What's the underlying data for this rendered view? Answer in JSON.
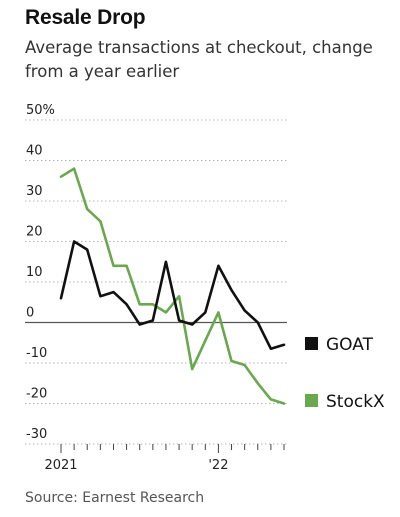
{
  "header": {
    "title": "Resale Drop",
    "subtitle": "Average transactions at checkout, change from a year earlier"
  },
  "footer": {
    "source": "Source: Earnest Research"
  },
  "chart_data": {
    "type": "line",
    "title": "Resale Drop",
    "subtitle": "Average transactions at checkout, change from a year earlier",
    "xlabel": "",
    "ylabel": "",
    "x_tick_labels": [
      "2021",
      "'22"
    ],
    "y_ticks": [
      {
        "value": 50,
        "label": "50%"
      },
      {
        "value": 40,
        "label": "40"
      },
      {
        "value": 30,
        "label": "30"
      },
      {
        "value": 20,
        "label": "20"
      },
      {
        "value": 10,
        "label": "10"
      },
      {
        "value": 0,
        "label": "0"
      },
      {
        "value": -10,
        "label": "-10"
      },
      {
        "value": -20,
        "label": "-20"
      },
      {
        "value": -30,
        "label": "-30"
      }
    ],
    "ylim": [
      -30,
      50
    ],
    "grid": "horizontal dotted",
    "legend_position": "right",
    "x": [
      "Jan 2021",
      "Feb 2021",
      "Mar 2021",
      "Apr 2021",
      "May 2021",
      "Jun 2021",
      "Jul 2021",
      "Aug 2021",
      "Sep 2021",
      "Oct 2021",
      "Nov 2021",
      "Dec 2021",
      "Jan 2022",
      "Feb 2022",
      "Mar 2022",
      "Apr 2022",
      "May 2022",
      "Jun 2022"
    ],
    "series": [
      {
        "name": "GOAT",
        "color": "#111111",
        "values": [
          6,
          20,
          18,
          6.5,
          7.5,
          4.5,
          -0.5,
          0.5,
          15,
          0.5,
          -0.5,
          2.5,
          14,
          8,
          3,
          0,
          -6.5,
          -5.5
        ]
      },
      {
        "name": "StockX",
        "color": "#6aa84f",
        "values": [
          36,
          38,
          28,
          25,
          14,
          14,
          4.5,
          4.5,
          2.5,
          6.5,
          -11.5,
          -4.5,
          2.5,
          -9.5,
          -10.5,
          -15,
          -19,
          -20
        ]
      }
    ]
  }
}
